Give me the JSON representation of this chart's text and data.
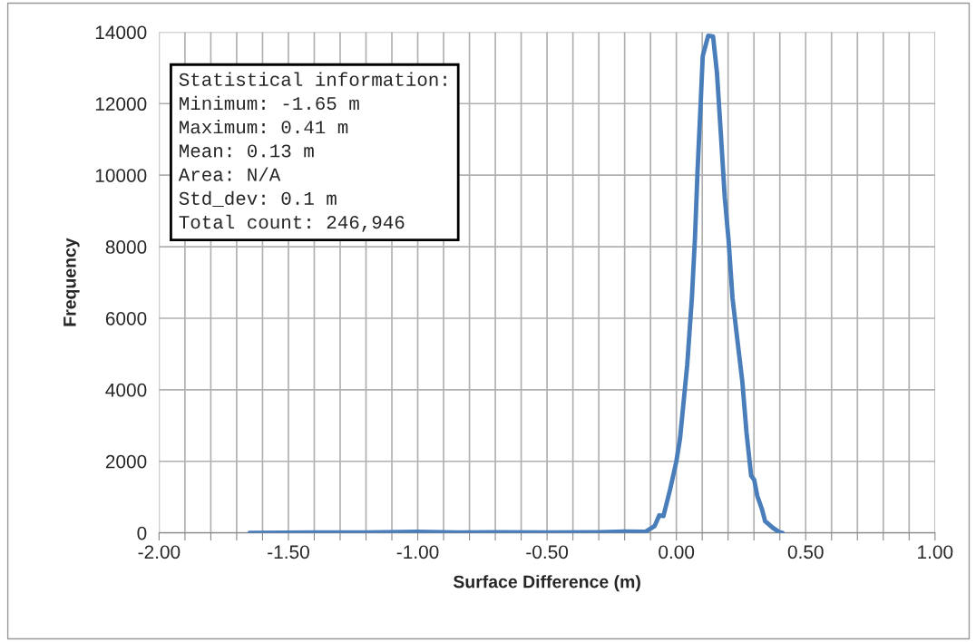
{
  "chart_data": {
    "type": "line",
    "xlabel": "Surface Difference (m)",
    "ylabel": "Frequency",
    "annotations": [
      "Statistical information:\nMinimum: -1.65 m\nMaximum: 0.41 m\nMean: 0.13 m\nArea: N/A\nStd_dev: 0.1 m\nTotal count: 246,946"
    ],
    "x": [
      -1.65,
      -1.4,
      -1.2,
      -1.0,
      -0.85,
      -0.7,
      -0.5,
      -0.3,
      -0.2,
      -0.12,
      -0.084,
      -0.066,
      -0.05,
      -0.024,
      0.0,
      0.014,
      0.042,
      0.06,
      0.072,
      0.082,
      0.094,
      0.102,
      0.123,
      0.142,
      0.157,
      0.171,
      0.187,
      0.202,
      0.217,
      0.235,
      0.255,
      0.271,
      0.289,
      0.301,
      0.313,
      0.331,
      0.343,
      0.373,
      0.398,
      0.41
    ],
    "series": [
      {
        "color": "#4a7ebb",
        "values": [
          0,
          10,
          10,
          30,
          10,
          20,
          10,
          20,
          40,
          30,
          190,
          490,
          470,
          1220,
          2000,
          2630,
          4700,
          6570,
          8260,
          10140,
          12020,
          13330,
          13900,
          13880,
          12860,
          11270,
          9390,
          8170,
          6570,
          5450,
          4230,
          2820,
          1600,
          1480,
          1030,
          660,
          330,
          140,
          20,
          0
        ]
      }
    ],
    "xlim": [
      -2,
      1
    ],
    "ylim": [
      0,
      14000
    ],
    "xticks": [
      {
        "value": -2,
        "label": "-2.00"
      },
      {
        "value": -1.9,
        "label": null
      },
      {
        "value": -1.8,
        "label": null
      },
      {
        "value": -1.7,
        "label": null
      },
      {
        "value": -1.6,
        "label": null
      },
      {
        "value": -1.5,
        "label": "-1.50"
      },
      {
        "value": -1.4,
        "label": null
      },
      {
        "value": -1.3,
        "label": null
      },
      {
        "value": -1.2,
        "label": null
      },
      {
        "value": -1.1,
        "label": null
      },
      {
        "value": -1,
        "label": "-1.00"
      },
      {
        "value": -0.9,
        "label": null
      },
      {
        "value": -0.8,
        "label": null
      },
      {
        "value": -0.7,
        "label": null
      },
      {
        "value": -0.6,
        "label": null
      },
      {
        "value": -0.5,
        "label": "-0.50"
      },
      {
        "value": -0.4,
        "label": null
      },
      {
        "value": -0.3,
        "label": null
      },
      {
        "value": -0.2,
        "label": null
      },
      {
        "value": -0.1,
        "label": null
      },
      {
        "value": 0,
        "label": "0.00"
      },
      {
        "value": 0.1,
        "label": null
      },
      {
        "value": 0.2,
        "label": null
      },
      {
        "value": 0.3,
        "label": null
      },
      {
        "value": 0.4,
        "label": null
      },
      {
        "value": 0.5,
        "label": "0.50"
      },
      {
        "value": 0.6,
        "label": null
      },
      {
        "value": 0.7,
        "label": null
      },
      {
        "value": 0.8,
        "label": null
      },
      {
        "value": 0.9,
        "label": null
      },
      {
        "value": 1,
        "label": "1.00"
      }
    ],
    "yticks": [
      0,
      2000,
      4000,
      6000,
      8000,
      10000,
      12000,
      14000
    ],
    "grid": true,
    "marker": "none",
    "line_style": "solid"
  }
}
